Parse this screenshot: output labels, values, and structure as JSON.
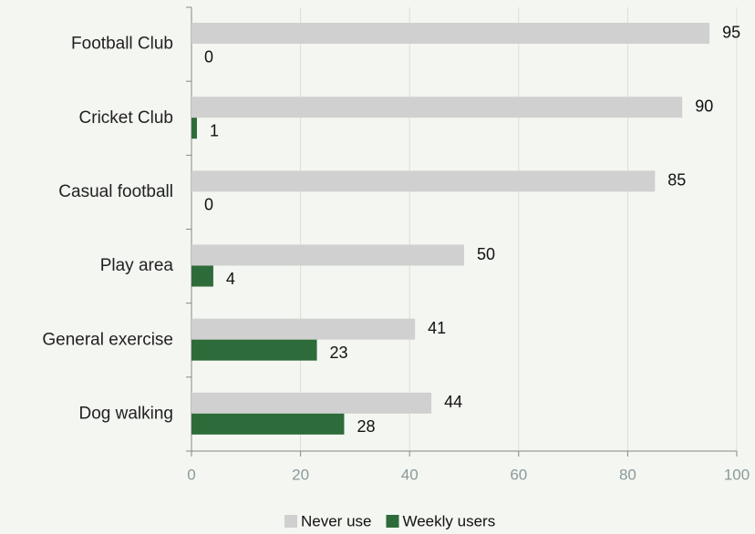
{
  "chart_data": {
    "type": "hbar",
    "categories": [
      "Football Club",
      "Cricket Club",
      "Casual football",
      "Play area",
      "General exercise",
      "Dog walking"
    ],
    "series": [
      {
        "name": "Never use",
        "color": "#d0d0d0",
        "values": [
          95,
          90,
          85,
          50,
          41,
          44
        ]
      },
      {
        "name": "Weekly users",
        "color": "#2e6b3a",
        "values": [
          0,
          1,
          0,
          4,
          23,
          28
        ]
      }
    ],
    "xlim": [
      0,
      100
    ],
    "xticks": [
      0,
      20,
      40,
      60,
      80,
      100
    ],
    "grid": true,
    "legend": "bottom"
  }
}
